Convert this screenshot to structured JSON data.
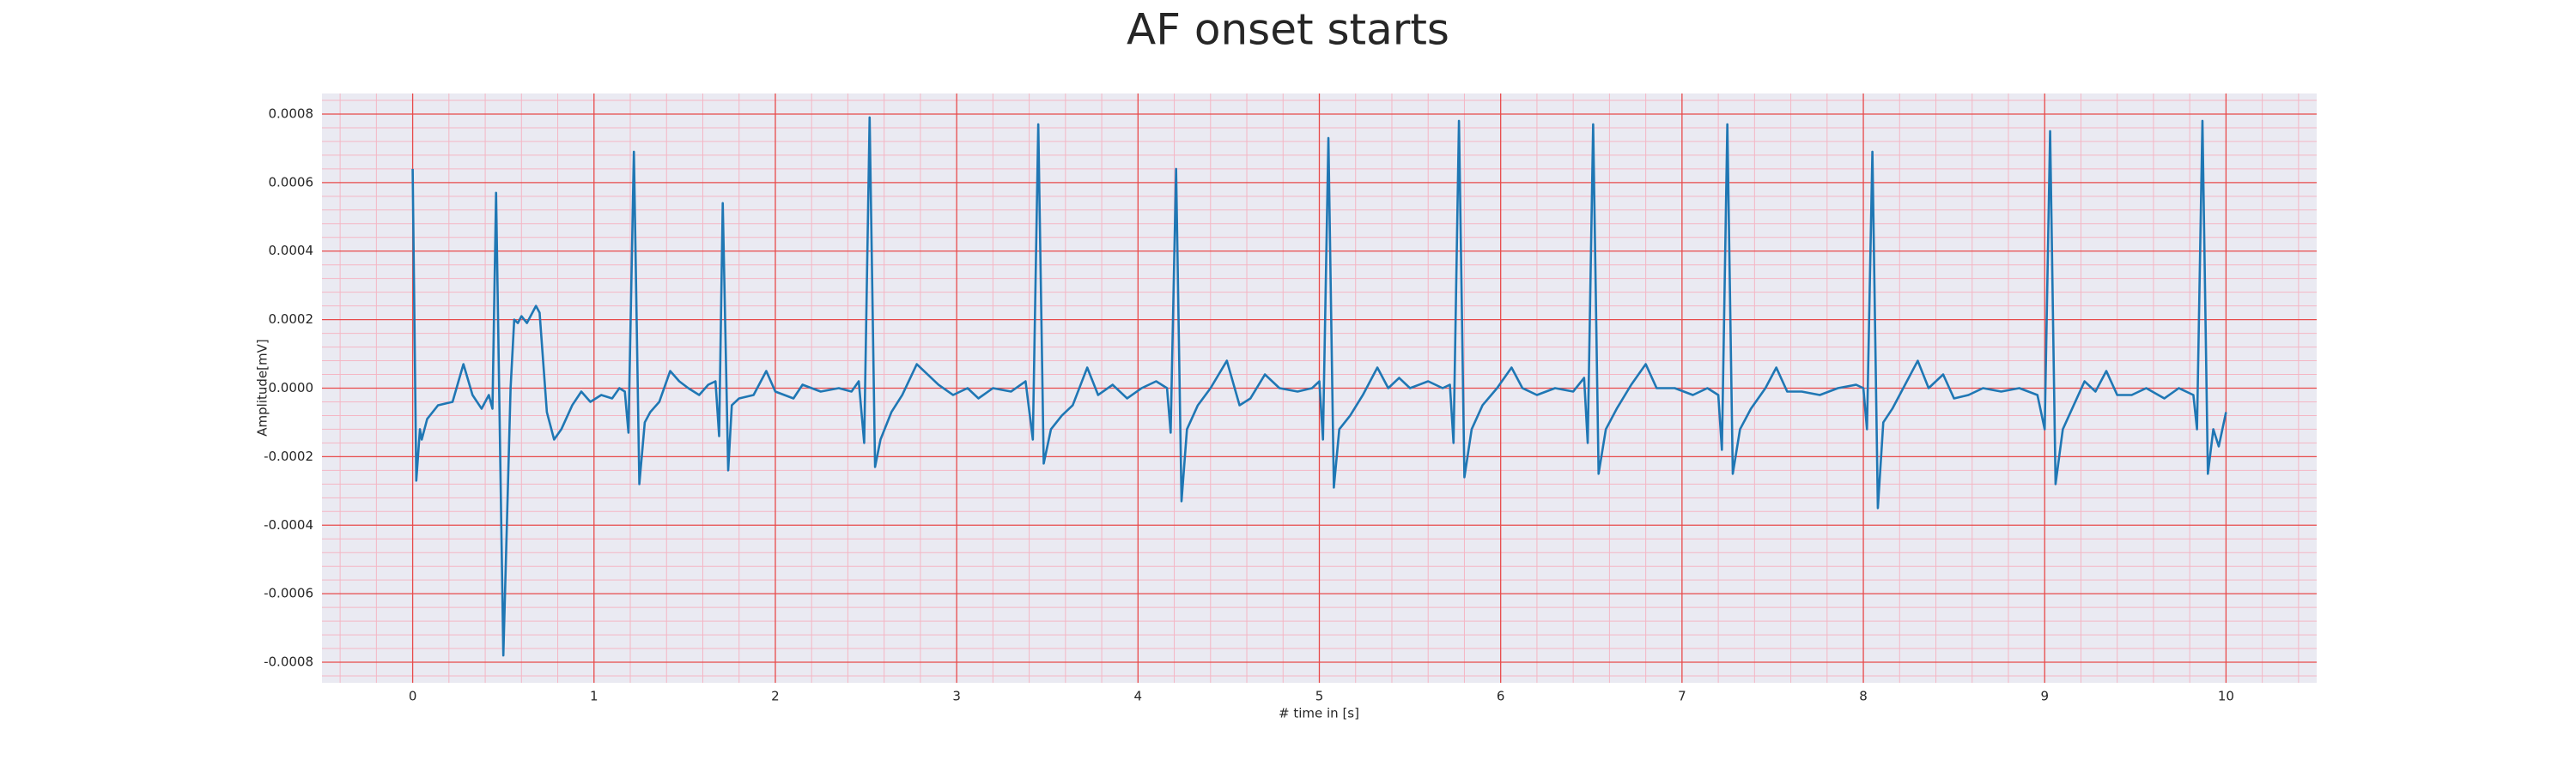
{
  "chart_data": {
    "type": "line",
    "title": "AF onset starts",
    "xlabel": "# time in [s]",
    "ylabel": "Amplitude[mV]",
    "x": [
      0,
      0.02,
      0.04,
      0.05,
      0.08,
      0.14,
      0.22,
      0.28,
      0.33,
      0.38,
      0.42,
      0.44,
      0.46,
      0.5,
      0.54,
      0.56,
      0.58,
      0.6,
      0.63,
      0.68,
      0.7,
      0.74,
      0.78,
      0.82,
      0.88,
      0.93,
      0.98,
      1.04,
      1.1,
      1.14,
      1.17,
      1.19,
      1.22,
      1.25,
      1.28,
      1.31,
      1.36,
      1.42,
      1.47,
      1.52,
      1.58,
      1.63,
      1.67,
      1.69,
      1.71,
      1.74,
      1.76,
      1.8,
      1.88,
      1.95,
      2,
      2.1,
      2.15,
      2.25,
      2.35,
      2.42,
      2.46,
      2.49,
      2.52,
      2.55,
      2.58,
      2.64,
      2.7,
      2.78,
      2.84,
      2.9,
      2.98,
      3.06,
      3.12,
      3.2,
      3.3,
      3.38,
      3.42,
      3.45,
      3.48,
      3.52,
      3.58,
      3.64,
      3.72,
      3.78,
      3.86,
      3.94,
      4.02,
      4.1,
      4.16,
      4.18,
      4.21,
      4.24,
      4.27,
      4.33,
      4.4,
      4.49,
      4.56,
      4.62,
      4.7,
      4.78,
      4.88,
      4.96,
      5,
      5.02,
      5.05,
      5.08,
      5.11,
      5.17,
      5.24,
      5.32,
      5.38,
      5.44,
      5.5,
      5.6,
      5.68,
      5.72,
      5.74,
      5.77,
      5.8,
      5.84,
      5.9,
      5.98,
      6.06,
      6.12,
      6.2,
      6.3,
      6.4,
      6.46,
      6.48,
      6.51,
      6.54,
      6.58,
      6.64,
      6.72,
      6.8,
      6.86,
      6.96,
      7.06,
      7.14,
      7.2,
      7.22,
      7.25,
      7.28,
      7.32,
      7.38,
      7.46,
      7.52,
      7.58,
      7.66,
      7.76,
      7.86,
      7.96,
      8,
      8.02,
      8.05,
      8.08,
      8.11,
      8.16,
      8.22,
      8.3,
      8.36,
      8.44,
      8.5,
      8.58,
      8.66,
      8.76,
      8.86,
      8.96,
      9,
      9.03,
      9.06,
      9.1,
      9.16,
      9.22,
      9.28,
      9.34,
      9.4,
      9.48,
      9.56,
      9.66,
      9.74,
      9.82,
      9.84,
      9.87,
      9.9,
      9.93,
      9.96,
      10
    ],
    "series": [
      {
        "color": "#1f77b4",
        "values": [
          0.00064,
          -0.00027,
          -0.00012,
          -0.00015,
          -9e-05,
          -5e-05,
          -4e-05,
          7e-05,
          -2e-05,
          -6e-05,
          -2e-05,
          -6e-05,
          0.00057,
          -0.00078,
          0,
          0.0002,
          0.00019,
          0.00021,
          0.00019,
          0.00024,
          0.00022,
          -7e-05,
          -0.00015,
          -0.00012,
          -5e-05,
          -1e-05,
          -4e-05,
          -2e-05,
          -3e-05,
          0,
          -1e-05,
          -0.00013,
          0.00069,
          -0.00028,
          -0.0001,
          -7e-05,
          -4e-05,
          5e-05,
          2e-05,
          0,
          -2e-05,
          1e-05,
          2e-05,
          -0.00014,
          0.00054,
          -0.00024,
          -5e-05,
          -3e-05,
          -2e-05,
          5e-05,
          -1e-05,
          -3e-05,
          1e-05,
          -1e-05,
          0,
          -1e-05,
          2e-05,
          -0.00016,
          0.00079,
          -0.00023,
          -0.00015,
          -7e-05,
          -2e-05,
          7e-05,
          4e-05,
          1e-05,
          -2e-05,
          0,
          -3e-05,
          0,
          -1e-05,
          2e-05,
          -0.00015,
          0.00077,
          -0.00022,
          -0.00012,
          -8e-05,
          -5e-05,
          6e-05,
          -2e-05,
          1e-05,
          -3e-05,
          0,
          2e-05,
          0,
          -0.00013,
          0.00064,
          -0.00033,
          -0.00012,
          -5e-05,
          0,
          8e-05,
          -5e-05,
          -3e-05,
          4e-05,
          0,
          -1e-05,
          0,
          2e-05,
          -0.00015,
          0.00073,
          -0.00029,
          -0.00012,
          -8e-05,
          -2e-05,
          6e-05,
          0,
          3e-05,
          0,
          2e-05,
          0,
          1e-05,
          -0.00016,
          0.00078,
          -0.00026,
          -0.00012,
          -5e-05,
          0,
          6e-05,
          0,
          -2e-05,
          0,
          -1e-05,
          3e-05,
          -0.00016,
          0.00077,
          -0.00025,
          -0.00012,
          -6e-05,
          1e-05,
          7e-05,
          0,
          0,
          -2e-05,
          0,
          -2e-05,
          -0.00018,
          0.00077,
          -0.00025,
          -0.00012,
          -6e-05,
          0,
          6e-05,
          -1e-05,
          -1e-05,
          -2e-05,
          0,
          1e-05,
          0,
          -0.00012,
          0.00069,
          -0.00035,
          -0.0001,
          -6e-05,
          0,
          8e-05,
          0,
          4e-05,
          -3e-05,
          -2e-05,
          0,
          -1e-05,
          0,
          -2e-05,
          -0.00012,
          0.00075,
          -0.00028,
          -0.00012,
          -5e-05,
          2e-05,
          -1e-05,
          5e-05,
          -2e-05,
          -2e-05,
          0,
          -3e-05,
          0,
          -2e-05,
          -0.00012,
          0.00078,
          -0.00025,
          -0.00012,
          -0.00017,
          -7e-05
        ]
      }
    ],
    "xlim": [
      -0.5,
      10.5
    ],
    "xticks": [
      0,
      1,
      2,
      3,
      4,
      5,
      6,
      7,
      8,
      9,
      10
    ],
    "ylim": [
      -0.00086,
      0.00086
    ],
    "yticks": [
      -0.0008,
      -0.0006,
      -0.0004,
      -0.0002,
      {
        "value": 0,
        "label": "0.0000"
      },
      0.0002,
      0.0004,
      0.0006,
      0.0008
    ],
    "xticks_minor": [
      -0.4,
      -0.2,
      0.2,
      0.4,
      0.6,
      0.8,
      1.2,
      1.4,
      1.6,
      1.8,
      2.2,
      2.4,
      2.6,
      2.8,
      3.2,
      3.4,
      3.6,
      3.8,
      4.2,
      4.4,
      4.6,
      4.8,
      5.2,
      5.4,
      5.6,
      5.8,
      6.2,
      6.4,
      6.6,
      6.8,
      7.2,
      7.4,
      7.6,
      7.8,
      8.2,
      8.4,
      8.6,
      8.8,
      9.2,
      9.4,
      9.6,
      9.8,
      10.2,
      10.4
    ],
    "yticks_minor": [
      -0.00084,
      -0.00076,
      -0.00072,
      -0.00068,
      -0.00064,
      -0.00056,
      -0.00052,
      -0.00048,
      -0.00044,
      -0.00036,
      -0.00032,
      -0.00028,
      -0.00024,
      -0.00016,
      -0.00012,
      -8e-05,
      -4e-05,
      4e-05,
      8e-05,
      0.00012,
      0.00016,
      0.00024,
      0.00028,
      0.00032,
      0.00036,
      0.00044,
      0.00048,
      0.00052,
      0.00056,
      0.00064,
      0.00068,
      0.00072,
      0.00076,
      0.00084
    ],
    "grid": true,
    "grid_color": "#e84a4a",
    "minor_grid_color": "#f4b6c4",
    "background": "#eaeaf2"
  }
}
